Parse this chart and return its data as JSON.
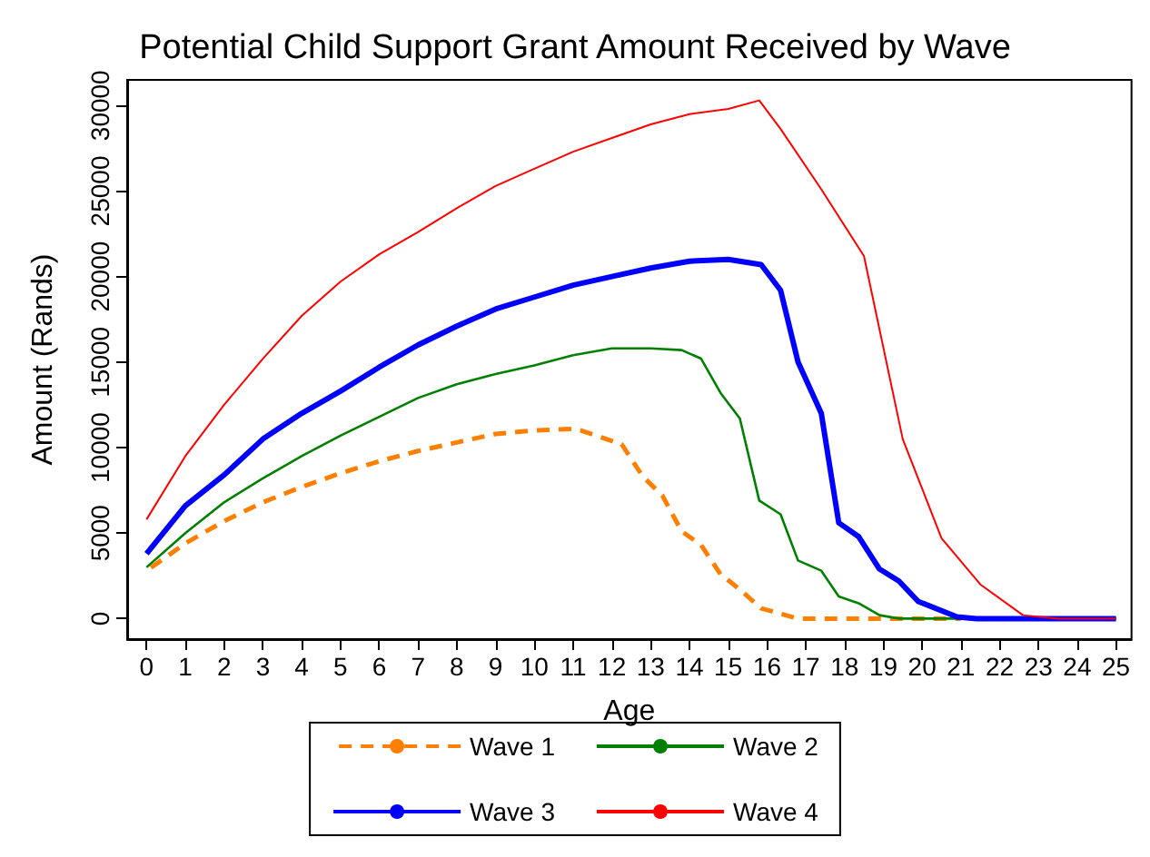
{
  "chart_data": {
    "type": "line",
    "title": "Potential Child Support Grant Amount Received by Wave",
    "xlabel": "Age",
    "ylabel": "Amount (Rands)",
    "xlim": [
      -0.5,
      25.4
    ],
    "xticks": [
      0,
      1,
      2,
      3,
      4,
      5,
      6,
      7,
      8,
      9,
      10,
      11,
      12,
      13,
      14,
      15,
      16,
      17,
      18,
      19,
      20,
      21,
      22,
      23,
      24,
      25
    ],
    "ylim": [
      -1200,
      31500
    ],
    "yticks": [
      0,
      5000,
      10000,
      15000,
      20000,
      25000,
      30000
    ],
    "grid": false,
    "legend": "bottom",
    "marker": "none",
    "series": [
      {
        "name": "Wave 1",
        "color": "#ff8000",
        "line_style": "dashed",
        "x": [
          0,
          1,
          2,
          3,
          4,
          5,
          6,
          7,
          8,
          9,
          10,
          11,
          11.2,
          12.25,
          12.8,
          13.3,
          13.8,
          14.3,
          14.8,
          15.3,
          15.85,
          16.8,
          21
        ],
        "values": [
          2800,
          4400,
          5700,
          6800,
          7700,
          8500,
          9200,
          9800,
          10300,
          10800,
          11000,
          11100,
          11000,
          10200,
          8300,
          7200,
          5100,
          4300,
          2600,
          1700,
          600,
          0,
          0
        ]
      },
      {
        "name": "Wave 2",
        "color": "#008000",
        "line_style": "solid",
        "x": [
          0,
          1,
          2,
          3,
          4,
          5,
          6,
          7,
          8,
          9,
          10,
          11,
          12,
          13,
          13.8,
          14.3,
          14.8,
          15.3,
          15.8,
          16.35,
          16.8,
          17.4,
          17.85,
          18.36,
          18.9,
          19.4,
          25
        ],
        "values": [
          3000,
          5000,
          6800,
          8200,
          9500,
          10700,
          11800,
          12900,
          13700,
          14300,
          14800,
          15400,
          15800,
          15800,
          15700,
          15200,
          13200,
          11700,
          6900,
          6100,
          3400,
          2800,
          1300,
          900,
          200,
          0,
          0
        ]
      },
      {
        "name": "Wave 3",
        "color": "#0000ff",
        "line_style": "solid",
        "x": [
          0,
          1,
          2,
          3,
          4,
          5,
          6,
          7,
          8,
          9,
          10,
          11,
          12,
          13,
          14,
          15,
          15.85,
          16.35,
          16.8,
          17.4,
          17.85,
          18.36,
          18.9,
          19.4,
          19.9,
          20.9,
          21.4,
          25
        ],
        "values": [
          3800,
          6600,
          8400,
          10500,
          12000,
          13300,
          14700,
          16000,
          17100,
          18100,
          18800,
          19500,
          20000,
          20500,
          20900,
          21000,
          20700,
          19200,
          15000,
          12000,
          5600,
          4800,
          2900,
          2200,
          1000,
          100,
          0,
          0
        ]
      },
      {
        "name": "Wave 4",
        "color": "#ff0000",
        "line_style": "solid",
        "x": [
          0,
          1,
          2,
          3,
          4,
          5,
          6,
          7,
          8,
          9,
          10,
          11,
          12,
          13,
          14,
          15,
          15.8,
          16.36,
          17.4,
          18.5,
          19.5,
          20.5,
          21.5,
          22.6,
          23.5,
          25
        ],
        "values": [
          5800,
          9500,
          12500,
          15200,
          17700,
          19700,
          21300,
          22600,
          24000,
          25300,
          26300,
          27300,
          28100,
          28900,
          29500,
          29800,
          30300,
          28600,
          25100,
          21200,
          10500,
          4700,
          2000,
          200,
          0,
          0
        ]
      }
    ]
  }
}
